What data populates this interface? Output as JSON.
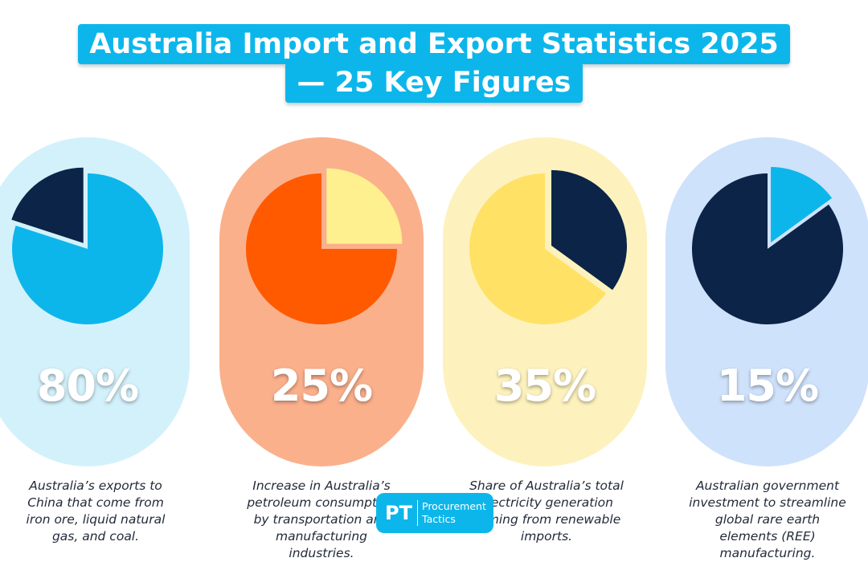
{
  "title": {
    "line1": "Australia Import and Export Statistics 2025",
    "line2": "— 25 Key Figures"
  },
  "chart_data": [
    {
      "type": "pie",
      "label": "80%",
      "value": 80,
      "description": "Australia’s exports to China that come from iron ore, liquid natural gas, and coal.",
      "colors": {
        "card": "#d3f1fb",
        "highlight": "#0db6ea",
        "rest": "#0b2447"
      },
      "exploded": "rest"
    },
    {
      "type": "pie",
      "label": "25%",
      "value": 25,
      "description": "Increase in Australia’s petroleum consumption by transportation and manufacturing industries.",
      "colors": {
        "card": "#fbb08c",
        "highlight": "#fff08f",
        "rest": "#ff5a00"
      },
      "exploded": "highlight"
    },
    {
      "type": "pie",
      "label": "35%",
      "value": 35,
      "description": "Share of Australia’s total electricity generation coming from renewable imports.",
      "colors": {
        "card": "#fdf2bd",
        "highlight": "#0b2447",
        "rest": "#ffe166"
      },
      "exploded": "highlight"
    },
    {
      "type": "pie",
      "label": "15%",
      "value": 15,
      "description": "Australian government investment to streamline global rare earth elements (REE) manufacturing.",
      "colors": {
        "card": "#cfe2fb",
        "highlight": "#0db6ea",
        "rest": "#0b2447"
      },
      "exploded": "highlight"
    }
  ],
  "logo": {
    "mark": "PT",
    "line1": "Procurement",
    "line2": "Tactics",
    "color": "#0db6ea"
  }
}
